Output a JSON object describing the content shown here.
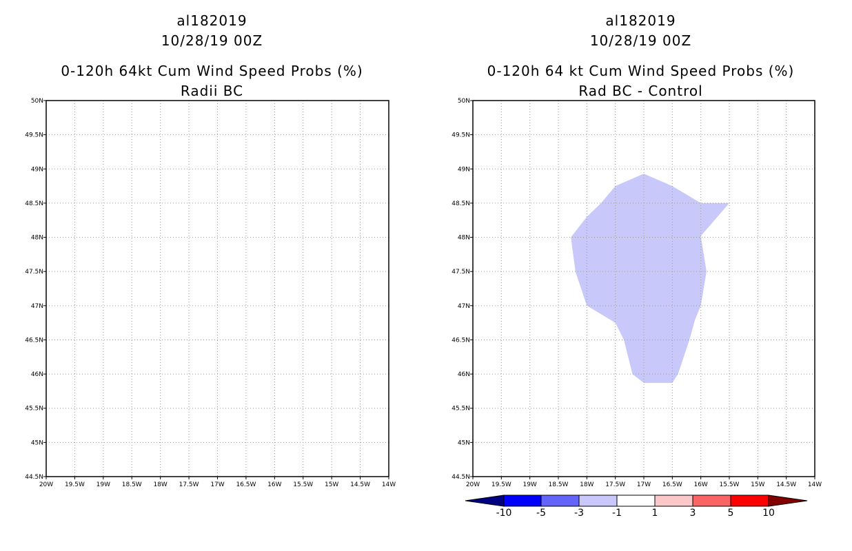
{
  "chart_data": [
    {
      "type": "map-contour",
      "title_lines": [
        "al182019",
        "10/28/19 00Z",
        "0-120h 64kt Cum Wind Speed Probs (%)",
        "Radii BC"
      ],
      "x_ticks": [
        "20W",
        "19.5W",
        "19W",
        "18.5W",
        "18W",
        "17.5W",
        "17W",
        "16.5W",
        "16W",
        "15.5W",
        "15W",
        "14.5W",
        "14W"
      ],
      "y_ticks": [
        "44.5N",
        "45N",
        "45.5N",
        "46N",
        "46.5N",
        "47N",
        "47.5N",
        "48N",
        "48.5N",
        "49N",
        "49.5N",
        "50N"
      ],
      "lon_range": [
        -20,
        -14
      ],
      "lat_range": [
        44.5,
        50
      ],
      "grid": "dotted",
      "shaded_regions": []
    },
    {
      "type": "map-contour",
      "title_lines": [
        "al182019",
        "10/28/19 00Z",
        "0-120h 64 kt Cum Wind Speed Probs (%)",
        "Rad BC - Control"
      ],
      "x_ticks": [
        "20W",
        "19.5W",
        "19W",
        "18.5W",
        "18W",
        "17.5W",
        "17W",
        "16.5W",
        "16W",
        "15.5W",
        "15W",
        "14.5W",
        "14W"
      ],
      "y_ticks": [
        "44.5N",
        "45N",
        "45.5N",
        "46N",
        "46.5N",
        "47N",
        "47.5N",
        "48N",
        "48.5N",
        "49N",
        "49.5N",
        "50N"
      ],
      "lon_range": [
        -20,
        -14
      ],
      "lat_range": [
        44.5,
        50
      ],
      "grid": "dotted",
      "shaded_regions": [
        {
          "level": "-3 to -1",
          "color": "#c8c8fa",
          "polygon_lon_lat": [
            [
              -17.0,
              48.93
            ],
            [
              -16.5,
              48.75
            ],
            [
              -16.0,
              48.5
            ],
            [
              -15.5,
              48.5
            ],
            [
              -16.0,
              48.02
            ],
            [
              -15.9,
              47.5
            ],
            [
              -16.0,
              47.0
            ],
            [
              -16.1,
              46.8
            ],
            [
              -16.2,
              46.5
            ],
            [
              -16.4,
              46.0
            ],
            [
              -16.5,
              45.87
            ],
            [
              -17.0,
              45.87
            ],
            [
              -17.2,
              46.0
            ],
            [
              -17.35,
              46.5
            ],
            [
              -17.5,
              46.75
            ],
            [
              -18.0,
              47.0
            ],
            [
              -18.2,
              47.5
            ],
            [
              -18.28,
              48.0
            ],
            [
              -18.0,
              48.3
            ],
            [
              -17.75,
              48.5
            ],
            [
              -17.5,
              48.75
            ]
          ]
        }
      ],
      "colorbar": {
        "labels": [
          "-10",
          "-5",
          "-3",
          "-1",
          "1",
          "3",
          "5",
          "10"
        ],
        "colors": [
          "#000082",
          "#0000ff",
          "#6464fa",
          "#c8c8fa",
          "#ffffff",
          "#fac8c8",
          "#fa6464",
          "#ff0000",
          "#820000"
        ]
      }
    }
  ]
}
